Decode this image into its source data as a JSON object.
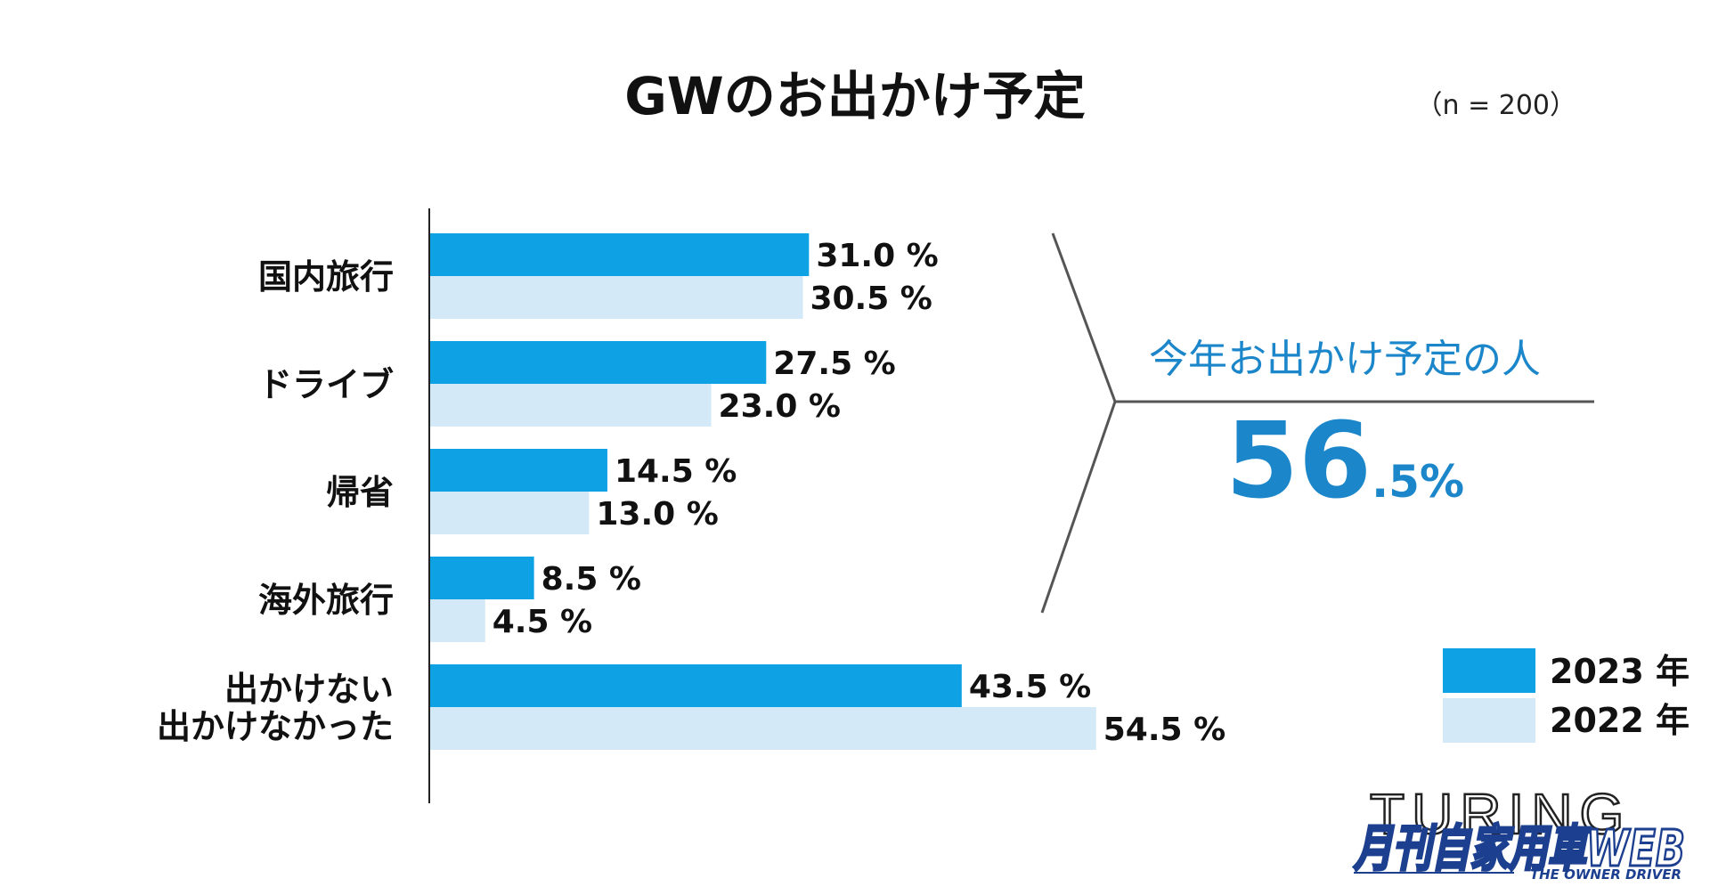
{
  "chart_data": {
    "type": "bar",
    "orientation": "horizontal",
    "title": "GWのお出かけ予定",
    "note": "（n = 200）",
    "categories": [
      "国内旅行",
      "ドライブ",
      "帰省",
      "海外旅行",
      "出かけない\n出かけなかった"
    ],
    "series": [
      {
        "name": "2023 年",
        "values": [
          31.0,
          27.5,
          14.5,
          8.5,
          43.5
        ],
        "color": "#0ea1e3"
      },
      {
        "name": "2022 年",
        "values": [
          30.5,
          23.0,
          13.0,
          4.5,
          54.5
        ],
        "color": "#d3e9f7"
      }
    ],
    "value_suffix": " %",
    "xlim": [
      0,
      60
    ],
    "grid": false,
    "legend": "bottom-right"
  },
  "callout": {
    "label": "今年お出かけ予定の人",
    "value_main": "56",
    "value_decimal": ".5%"
  },
  "logo": {
    "main": "TURING",
    "jp": "月刊自家用車WEB",
    "sub": "THE OWNER DRIVER"
  }
}
